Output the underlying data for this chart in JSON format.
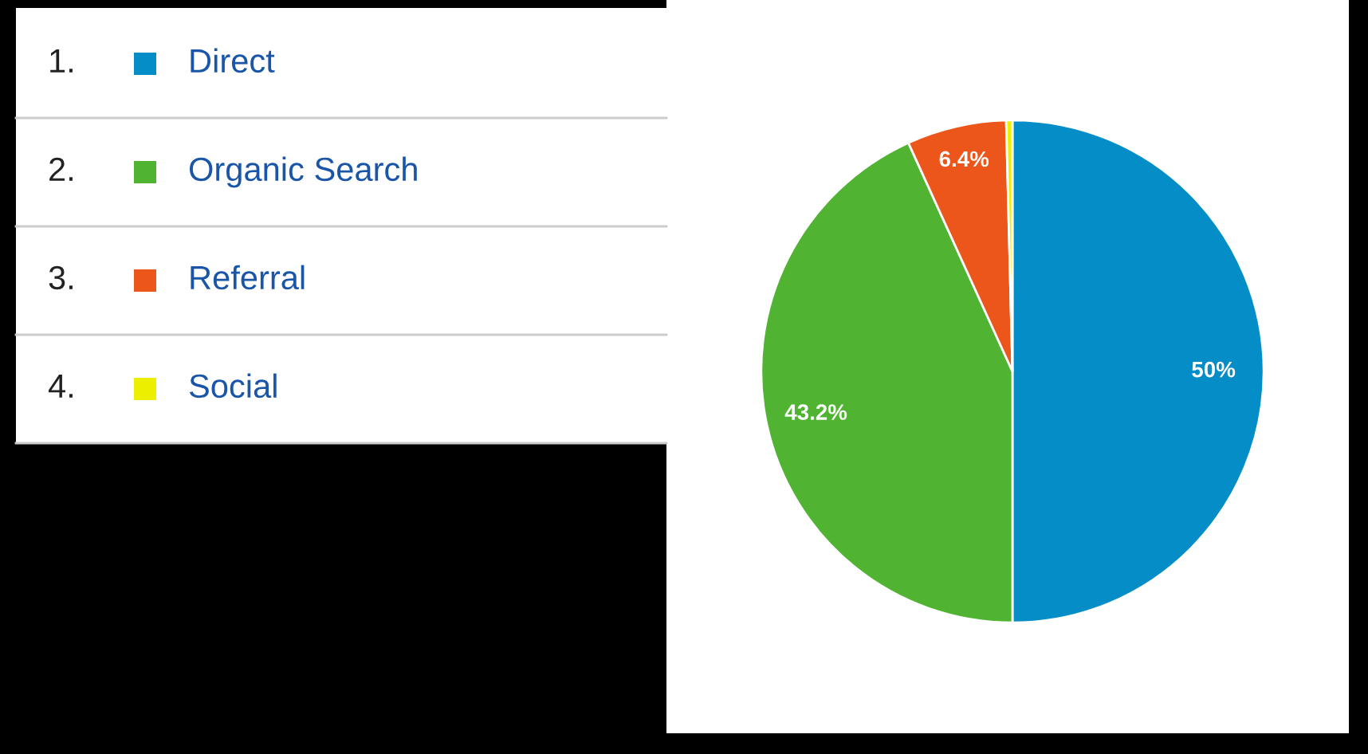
{
  "chart_data": {
    "type": "pie",
    "categories": [
      "Direct",
      "Organic Search",
      "Referral",
      "Social"
    ],
    "values": [
      50,
      43.2,
      6.4,
      0.4
    ],
    "colors": [
      "#058dc7",
      "#50b432",
      "#ed561b",
      "#edef00"
    ],
    "value_labels": [
      "50%",
      "43.2%",
      "6.4%",
      null
    ],
    "legend": "left",
    "annotations": [
      "1.",
      "2.",
      "3.",
      "4."
    ]
  }
}
